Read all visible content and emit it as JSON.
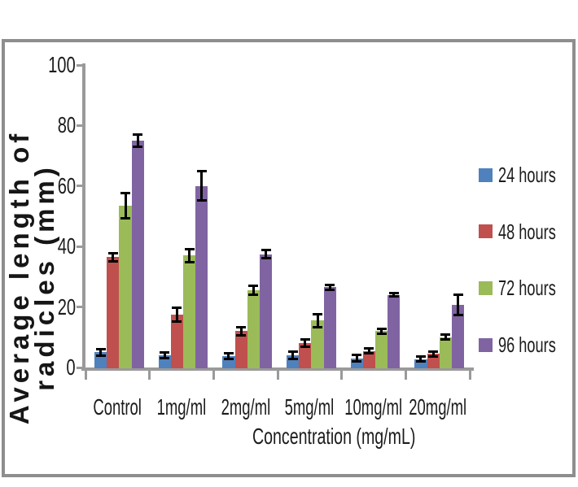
{
  "chart_data": {
    "type": "bar",
    "title": "",
    "categories": [
      "Control",
      "1mg/ml",
      "2mg/ml",
      "5mg/ml",
      "10mg/ml",
      "20mg/ml"
    ],
    "series": [
      {
        "name": "24 hours",
        "color": "#4F81BD",
        "values": [
          5,
          4,
          3.8,
          4,
          3,
          2.8
        ],
        "errors": [
          1.2,
          1,
          1,
          1.3,
          1.2,
          1
        ]
      },
      {
        "name": "48 hours",
        "color": "#C0504D",
        "values": [
          36.5,
          17.5,
          12,
          8,
          5.5,
          4.5
        ],
        "errors": [
          1.5,
          2.5,
          1.5,
          1.3,
          1,
          0.9
        ]
      },
      {
        "name": "72 hours",
        "color": "#9BBB59",
        "values": [
          53.5,
          37,
          25.5,
          15.5,
          12,
          10
        ],
        "errors": [
          4.3,
          2.2,
          1.6,
          2.2,
          1,
          0.9
        ]
      },
      {
        "name": "96 hours",
        "color": "#8064A2",
        "values": [
          75,
          60,
          37.5,
          26.5,
          24,
          20.7
        ],
        "errors": [
          2.2,
          5,
          1.6,
          0.9,
          0.7,
          3.5
        ]
      }
    ],
    "xlabel": "Concentration (mg/mL)",
    "ylabel": "Average length of radicles (mm)",
    "ylabel_lines": [
      "Average length of",
      "radicles (mm)"
    ],
    "ylim": [
      0,
      100
    ],
    "yticks": [
      0,
      20,
      40,
      60,
      80,
      100
    ],
    "grid": false,
    "legend_position": "right",
    "error_bar_color": "#000000",
    "axis_color": "#9a9a9a",
    "frame_color": "#8e8e8e",
    "background_color": "#ffffff"
  }
}
